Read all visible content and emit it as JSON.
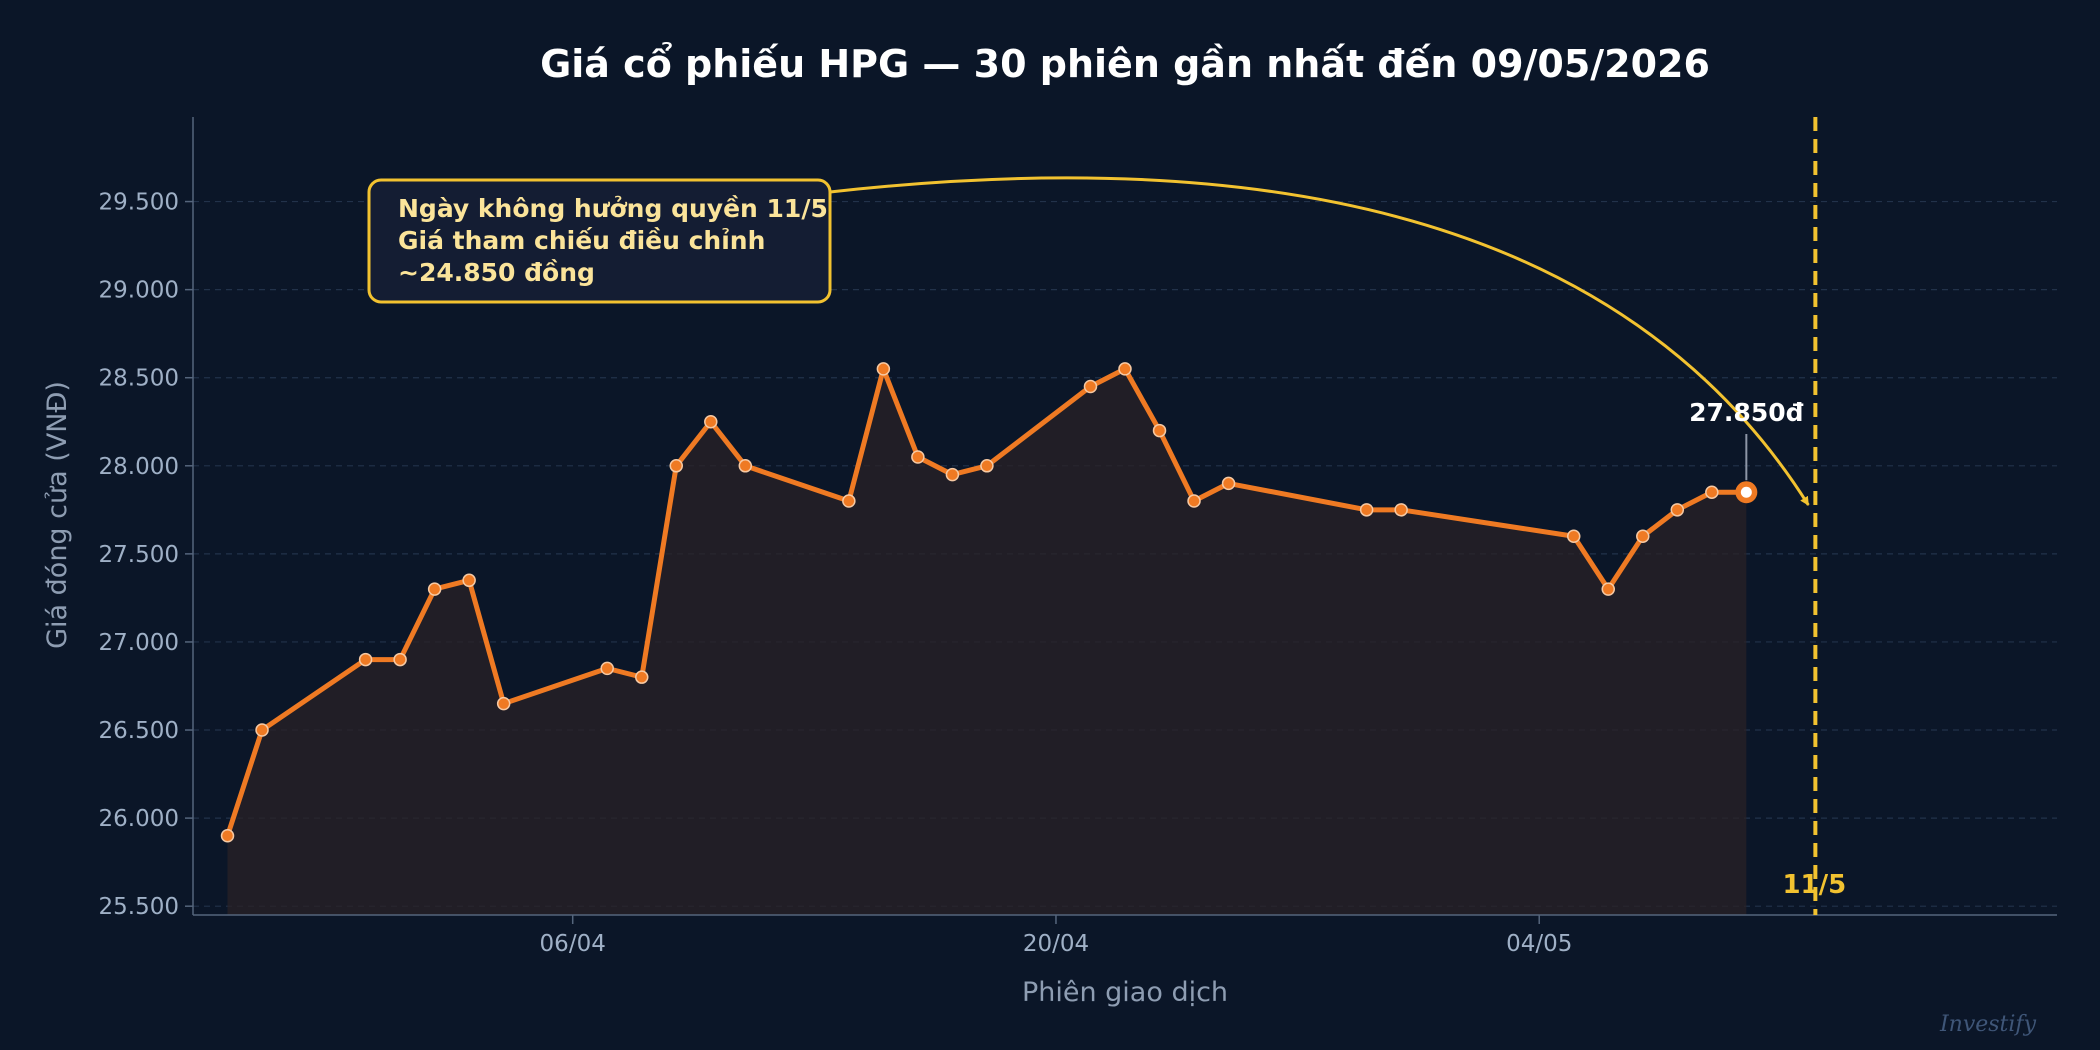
{
  "chart_data": {
    "type": "line",
    "title": "Giá cổ phiếu HPG — 30 phiên gần nhất đến 09/05/2026",
    "xlabel": "Phiên giao dịch",
    "ylabel": "Giá đóng cửa (VNĐ)",
    "ylim": [
      25450,
      29980
    ],
    "yticks": [
      25500,
      26000,
      26500,
      27000,
      27500,
      28000,
      28500,
      29000,
      29500
    ],
    "ytick_labels": [
      "25.500",
      "26.000",
      "26.500",
      "27.000",
      "27.500",
      "28.000",
      "28.500",
      "29.000",
      "29.500"
    ],
    "xlim": [
      "2026-03-26",
      "2026-05-19"
    ],
    "xticks": [
      "2026-04-06",
      "2026-04-20",
      "2026-05-04"
    ],
    "xtick_labels": [
      "06/04",
      "20/04",
      "04/05"
    ],
    "grid": "horizontal dashed",
    "series": [
      {
        "color": "#ef7a23",
        "x": [
          "2026-03-27",
          "2026-03-28",
          "2026-03-31",
          "2026-04-01",
          "2026-04-02",
          "2026-04-03",
          "2026-04-04",
          "2026-04-07",
          "2026-04-08",
          "2026-04-09",
          "2026-04-10",
          "2026-04-11",
          "2026-04-14",
          "2026-04-15",
          "2026-04-16",
          "2026-04-17",
          "2026-04-18",
          "2026-04-21",
          "2026-04-22",
          "2026-04-23",
          "2026-04-24",
          "2026-04-25",
          "2026-04-29",
          "2026-04-30",
          "2026-05-05",
          "2026-05-06",
          "2026-05-07",
          "2026-05-08",
          "2026-05-09",
          "2026-05-10"
        ],
        "values": [
          25900,
          26500,
          26900,
          26900,
          27300,
          27350,
          26650,
          26850,
          26800,
          28000,
          28250,
          28000,
          27800,
          28550,
          28050,
          27950,
          28000,
          28450,
          28550,
          28200,
          27800,
          27900,
          27750,
          27750,
          27600,
          27300,
          27600,
          27750,
          27850,
          27850
        ]
      }
    ],
    "last_value_label": "27.850đ",
    "event_line": {
      "x": "2026-05-12",
      "label": "11/5",
      "color": "#f2c230"
    },
    "annotation": {
      "lines": [
        "Ngày không hưởng quyền 11/5",
        "Giá tham chiếu điều chỉnh",
        "~24.850 đồng"
      ],
      "border_color": "#f2c230"
    },
    "watermark": "Investify"
  }
}
